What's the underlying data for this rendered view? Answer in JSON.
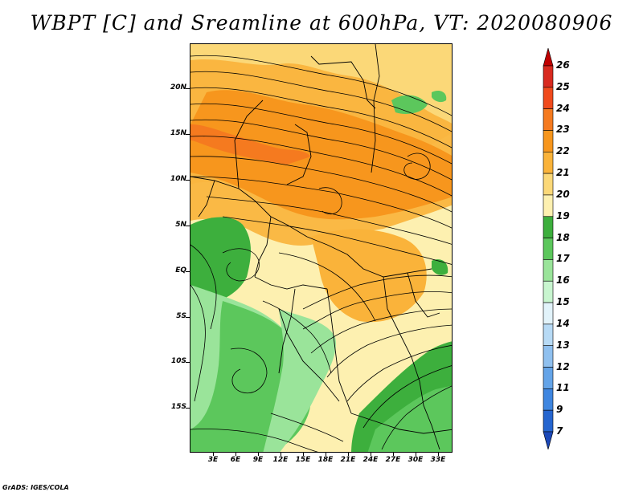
{
  "title": "WBPT [C] and Sreamline at 600hPa, VT: 2020080906",
  "footer": "GrADS: IGES/COLA",
  "lat_labels": [
    "20N",
    "15N",
    "10N",
    "5N",
    "EQ",
    "5S",
    "10S",
    "15S"
  ],
  "lon_labels": [
    "3E",
    "6E",
    "9E",
    "12E",
    "15E",
    "18E",
    "21E",
    "24E",
    "27E",
    "30E",
    "33E"
  ],
  "colorbar": {
    "levels": [
      "26",
      "25",
      "24",
      "23",
      "22",
      "21",
      "20",
      "19",
      "18",
      "17",
      "16",
      "15",
      "14",
      "13",
      "12",
      "11",
      "9",
      "7"
    ],
    "colors": [
      "#c00000",
      "#d82a1f",
      "#f04a1c",
      "#f57a1f",
      "#f7961d",
      "#fab33a",
      "#fbd878",
      "#fdf0b0",
      "#3daf3d",
      "#5cc75c",
      "#9ae49a",
      "#c8f5cf",
      "#e2f3fa",
      "#b7daf5",
      "#8fc0ef",
      "#64a4e8",
      "#3f86e0",
      "#2565cf",
      "#1b48b8"
    ]
  },
  "colors": {
    "green": "#3daf3d",
    "orange": "#f7961d",
    "yellow": "#fdf0b0"
  }
}
